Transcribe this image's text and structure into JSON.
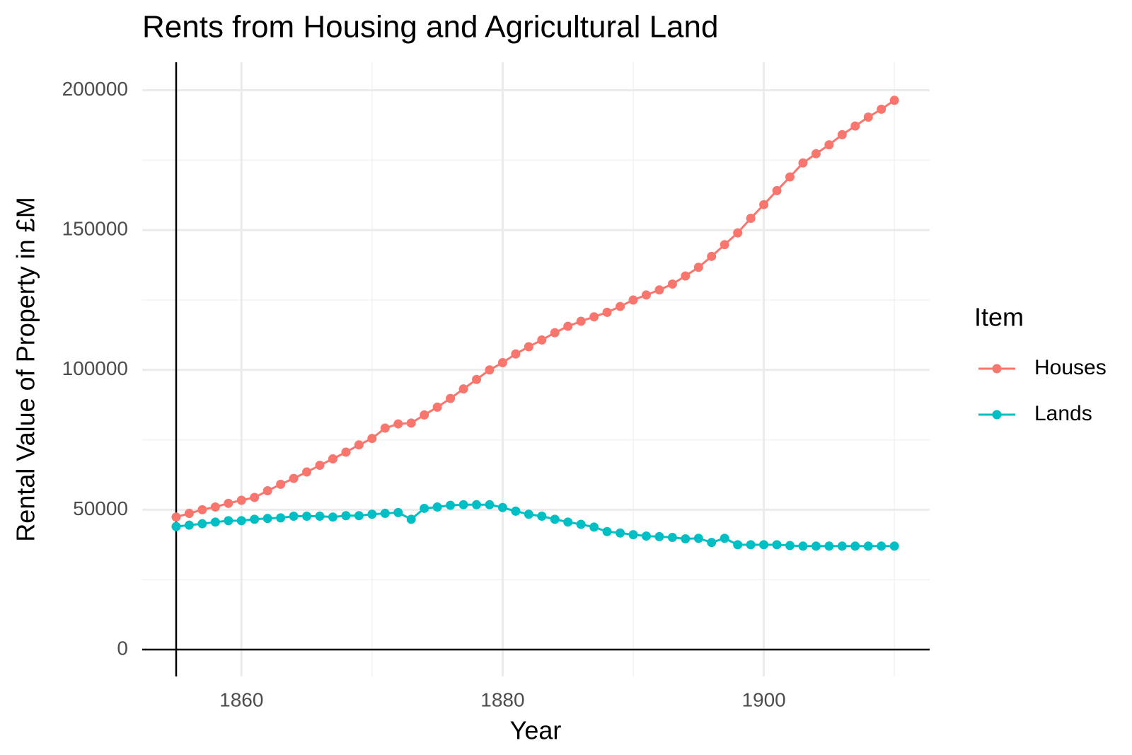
{
  "chart_data": {
    "type": "line",
    "title": "Rents from Housing and Agricultural Land",
    "xlabel": "Year",
    "ylabel": "Rental Value of Property in £M",
    "legend_title": "Item",
    "legend": "right",
    "grid": true,
    "x": [
      1855,
      1856,
      1857,
      1858,
      1859,
      1860,
      1861,
      1862,
      1863,
      1864,
      1865,
      1866,
      1867,
      1868,
      1869,
      1870,
      1871,
      1872,
      1873,
      1874,
      1875,
      1876,
      1877,
      1878,
      1879,
      1880,
      1881,
      1882,
      1883,
      1884,
      1885,
      1886,
      1887,
      1888,
      1889,
      1890,
      1891,
      1892,
      1893,
      1894,
      1895,
      1896,
      1897,
      1898,
      1899,
      1900,
      1901,
      1902,
      1903,
      1904,
      1905,
      1906,
      1907,
      1908,
      1909,
      1910
    ],
    "series": [
      {
        "name": "Houses",
        "color": "#F8766D",
        "values": [
          47400,
          48700,
          50000,
          51000,
          52300,
          53400,
          54400,
          56800,
          59100,
          61200,
          63500,
          65900,
          68200,
          70600,
          73200,
          75500,
          79200,
          80700,
          81000,
          83900,
          86700,
          89800,
          93200,
          96600,
          100000,
          102600,
          105700,
          108300,
          110700,
          113300,
          115600,
          117400,
          119000,
          120600,
          122700,
          125000,
          126800,
          128600,
          130700,
          133600,
          136700,
          140600,
          144800,
          149000,
          154200,
          159100,
          164100,
          169000,
          174000,
          177300,
          180500,
          184100,
          187200,
          190400,
          193200,
          196400
        ]
      },
      {
        "name": "Lands",
        "color": "#00BFC4",
        "values": [
          44000,
          44500,
          45000,
          45600,
          46100,
          46100,
          46600,
          46900,
          47100,
          47700,
          47700,
          47700,
          47400,
          47900,
          47900,
          48400,
          48700,
          49000,
          46600,
          50500,
          51000,
          51600,
          51800,
          51800,
          51800,
          50800,
          49500,
          48400,
          47700,
          46600,
          45600,
          44800,
          43800,
          42200,
          41700,
          41100,
          40600,
          40400,
          40100,
          39600,
          39800,
          38300,
          39800,
          37500,
          37500,
          37500,
          37500,
          37200,
          37000,
          37000,
          37000,
          37000,
          37000,
          37000,
          37000,
          37000
        ]
      }
    ],
    "xlim": [
      1852.4,
      1912.7
    ],
    "ylim": [
      -9600,
      210000
    ],
    "xticks": [
      1860,
      1880,
      1900
    ],
    "yticks": [
      0,
      50000,
      100000,
      150000,
      200000
    ],
    "xminor": [
      1870,
      1890,
      1910
    ],
    "yminor": [
      25000,
      75000,
      125000,
      175000
    ],
    "vline": 1855,
    "hline": 0
  }
}
